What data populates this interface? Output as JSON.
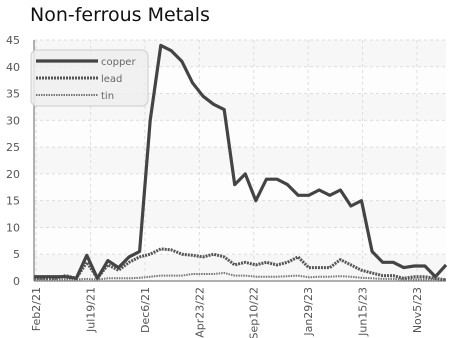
{
  "chart_data": {
    "type": "line",
    "title": "Non-ferrous Metals",
    "xlabel": "",
    "ylabel": "",
    "ylim": [
      0,
      45
    ],
    "yticks": [
      0,
      5,
      10,
      15,
      20,
      25,
      30,
      35,
      40,
      45
    ],
    "xtick_labels": [
      "Feb2/21",
      "Jul19/21",
      "Dec6/21",
      "Apr23/22",
      "Sep10/22",
      "Jan29/23",
      "Jun15/23",
      "Nov5/23"
    ],
    "grid": true,
    "legend_position": "top-left",
    "series": [
      {
        "name": "copper",
        "color": "#444444",
        "style": "solid",
        "values": [
          0.8,
          0.8,
          0.8,
          0.8,
          0.5,
          4.8,
          0.5,
          3.8,
          2.5,
          4.5,
          5.5,
          30,
          44,
          43,
          41,
          37,
          34.5,
          33,
          32,
          18,
          20,
          15,
          19,
          19,
          18,
          16,
          16,
          17,
          16,
          17,
          14,
          15,
          5.5,
          3.5,
          3.5,
          2.5,
          2.8,
          2.8,
          0.8,
          3.0
        ]
      },
      {
        "name": "lead",
        "color": "#555555",
        "style": "dashed",
        "values": [
          0.5,
          0.5,
          0.5,
          1.0,
          0.5,
          3.5,
          0.5,
          3.0,
          2.0,
          3.5,
          4.5,
          5.0,
          6.0,
          5.8,
          5.0,
          4.8,
          4.5,
          5.0,
          4.5,
          3.0,
          3.5,
          3.0,
          3.5,
          3.0,
          3.5,
          4.5,
          2.5,
          2.5,
          2.5,
          4.0,
          3.0,
          2.0,
          1.5,
          1.0,
          1.0,
          0.5,
          0.8,
          0.8,
          0.5,
          0.2
        ]
      },
      {
        "name": "tin",
        "color": "#777777",
        "style": "dotted",
        "values": [
          0.3,
          0.3,
          0.3,
          0.3,
          0.3,
          0.4,
          0.3,
          0.5,
          0.5,
          0.5,
          0.6,
          0.8,
          1.0,
          1.0,
          1.0,
          1.3,
          1.3,
          1.3,
          1.5,
          1.0,
          1.0,
          0.8,
          0.8,
          0.8,
          0.9,
          1.0,
          0.7,
          0.8,
          0.8,
          0.9,
          0.8,
          0.6,
          0.5,
          0.4,
          0.4,
          0.3,
          0.3,
          0.3,
          0.3,
          0.3
        ]
      }
    ]
  }
}
